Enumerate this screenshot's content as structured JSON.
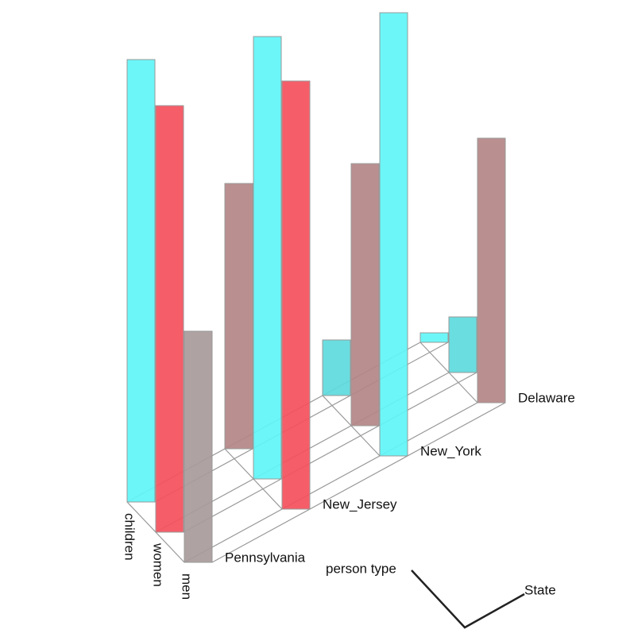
{
  "chart_data": {
    "type": "bar3d",
    "x_label": "person type",
    "z_label": "State",
    "categories": [
      "children",
      "women",
      "men"
    ],
    "series": [
      {
        "name": "Pennsylvania",
        "values": [
          557,
          537,
          291
        ],
        "colors": [
          "#5ff5f7",
          "#f4505c",
          "#a89a9a"
        ]
      },
      {
        "name": "New_Jersey",
        "values": [
          334,
          557,
          539
        ],
        "colors": [
          "#b48686",
          "#5ff5f7",
          "#f4505c"
        ]
      },
      {
        "name": "New_York",
        "values": [
          70,
          330,
          558
        ],
        "colors": [
          "#5ddadd",
          "#b48686",
          "#5ff5f7"
        ]
      },
      {
        "name": "Delaware",
        "values": [
          12,
          70,
          333
        ],
        "colors": [
          "#5ff5f7",
          "#5ddadd",
          "#b48686"
        ]
      }
    ]
  }
}
